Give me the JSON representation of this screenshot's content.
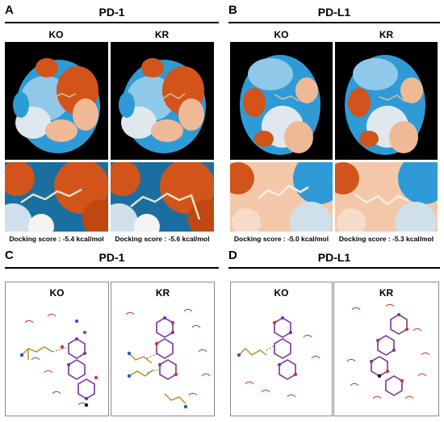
{
  "panels": {
    "A": {
      "letter": "A",
      "title": "PD-1",
      "left_label": "KO",
      "right_label": "KR",
      "left_score": "Docking score : -5.4 kcal/mol",
      "right_score": "Docking score : -5.6 kcal/mol"
    },
    "B": {
      "letter": "B",
      "title": "PD-L1",
      "left_label": "KO",
      "right_label": "KR",
      "left_score": "Docking score : -5.0 kcal/mol",
      "right_score": "Docking score : -5.3 kcal/mol"
    },
    "C": {
      "letter": "C",
      "title": "PD-1",
      "left_label": "KO",
      "right_label": "KR"
    },
    "D": {
      "letter": "D",
      "title": "PD-L1",
      "left_label": "KO",
      "right_label": "KR"
    }
  },
  "colors": {
    "surface_blue": "#2f9bd6",
    "surface_light": "#dfe8ee",
    "surface_orange": "#d2541a",
    "surface_peach": "#f0b995",
    "ligand_bond": "#7b2fa0",
    "hbond_green": "#2f8f2f",
    "hydrophobic_arc": "#c8342c"
  }
}
